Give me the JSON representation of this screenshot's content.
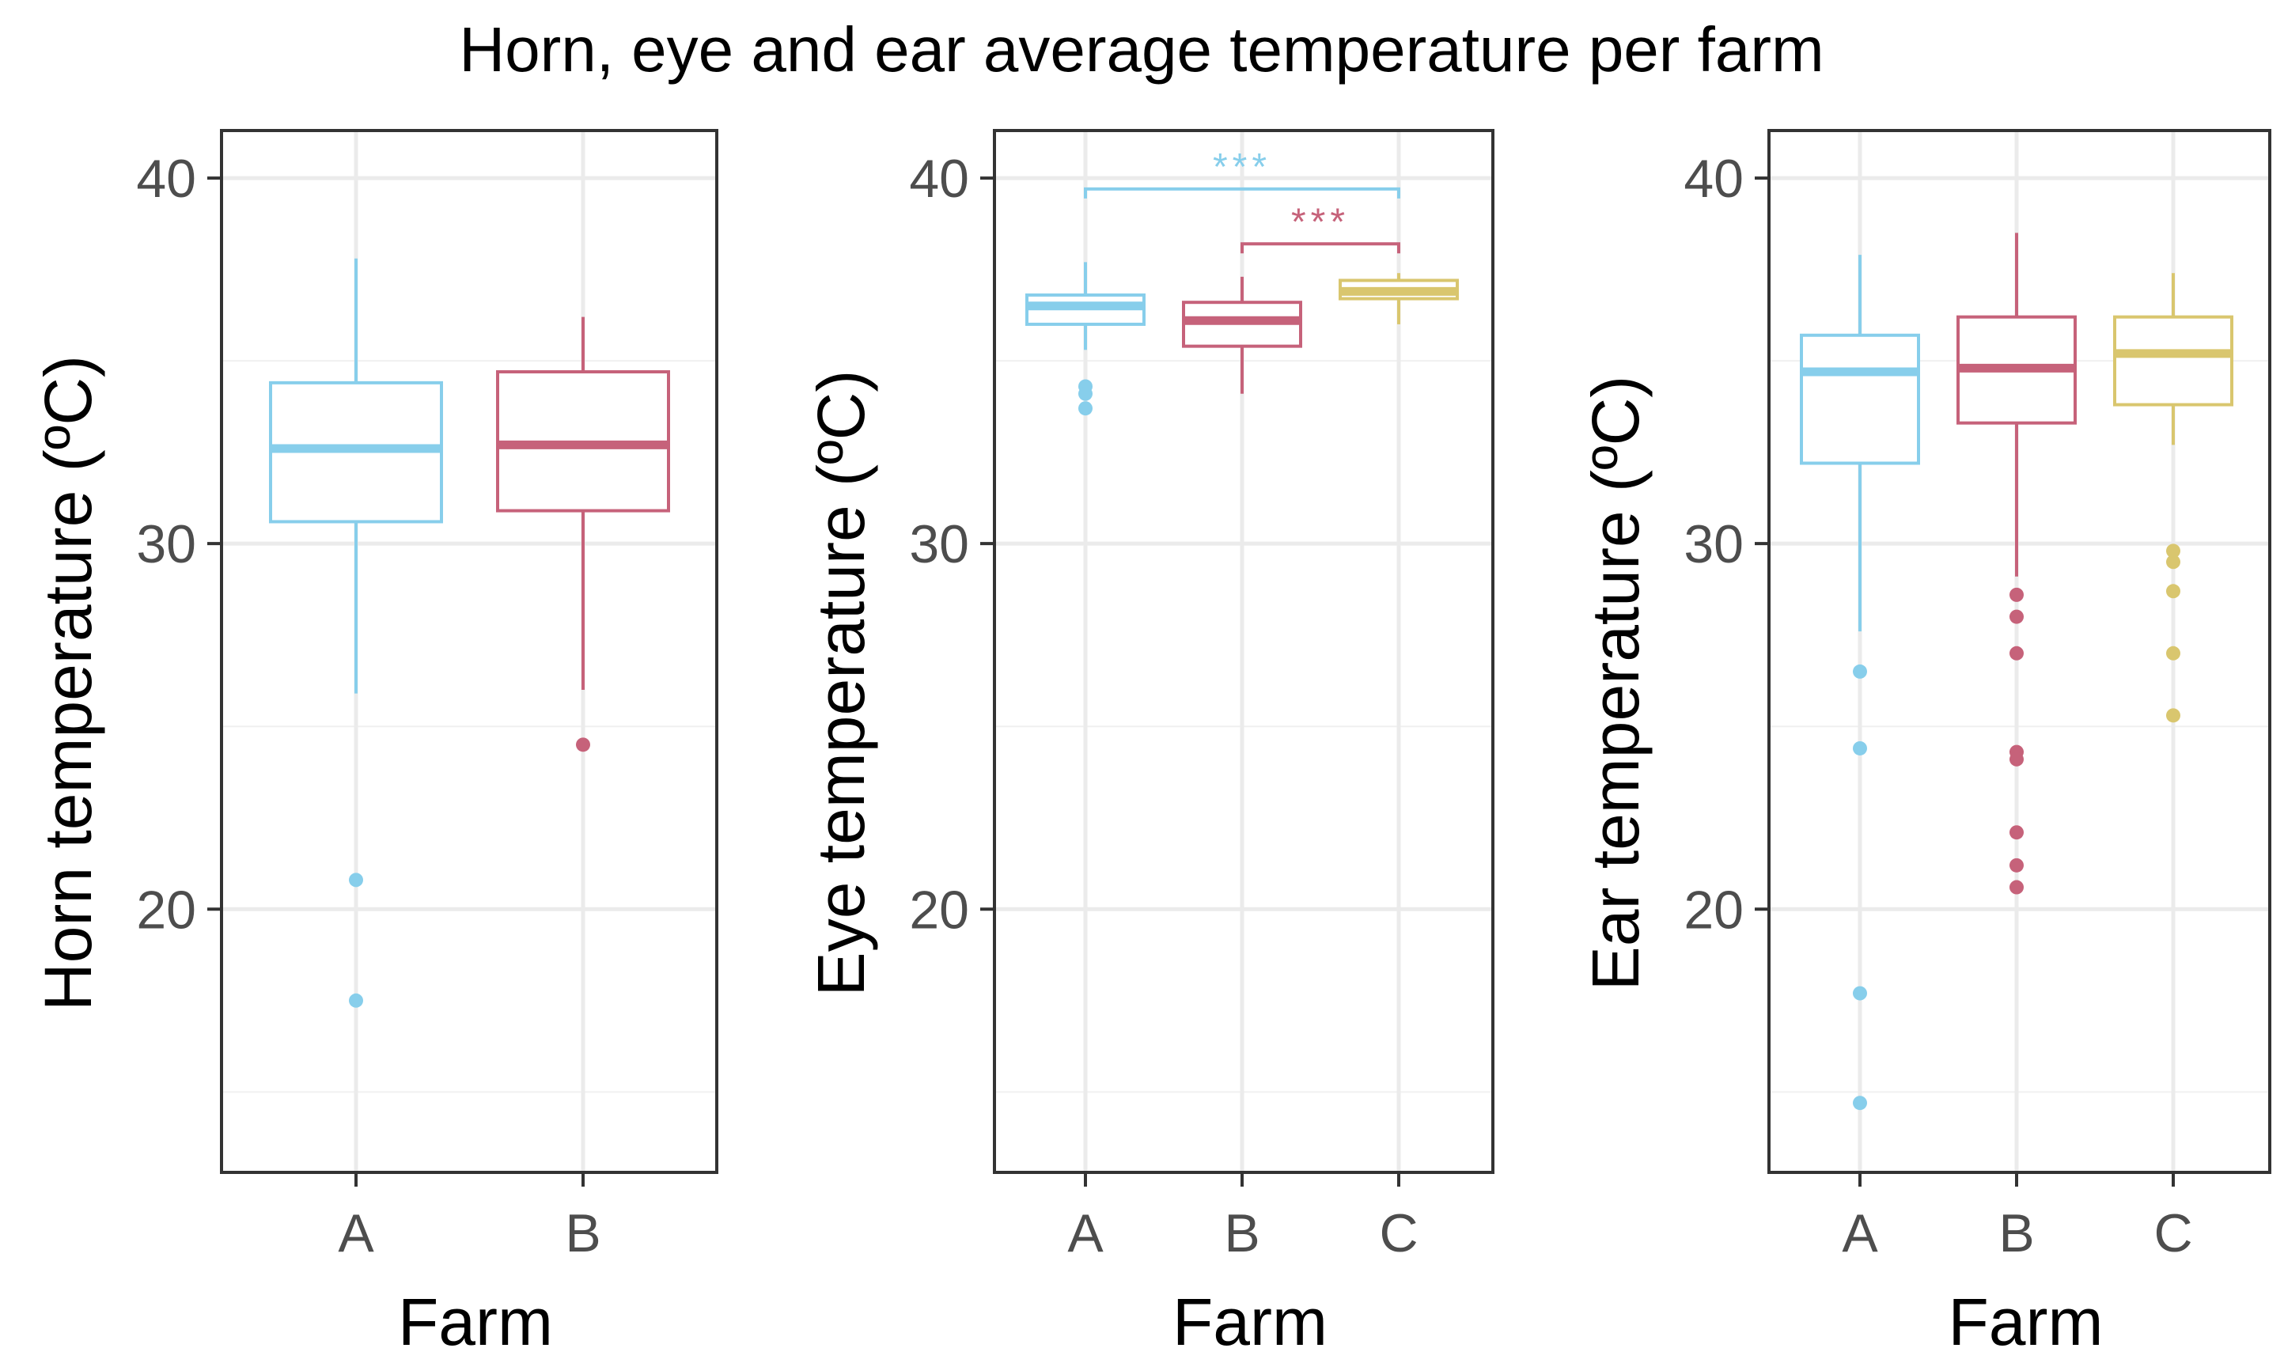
{
  "chart_data": [
    {
      "type": "box",
      "title": "Horn, eye and ear average temperature per farm",
      "xlabel": "Farm",
      "ylabel": "Horn temperature (ºC)",
      "ylim": [
        12.8,
        41.3
      ],
      "yticks": [
        20,
        30,
        40
      ],
      "categories": [
        "A",
        "B"
      ],
      "colors": [
        "#87CEEB",
        "#C6627A"
      ],
      "boxes": [
        {
          "category": "A",
          "whisker_low": 25.9,
          "q1": 30.6,
          "median": 32.6,
          "q3": 34.4,
          "whisker_high": 37.8,
          "outliers": [
            20.8,
            17.5
          ]
        },
        {
          "category": "B",
          "whisker_low": 26.0,
          "q1": 30.9,
          "median": 32.7,
          "q3": 34.7,
          "whisker_high": 36.2,
          "outliers": [
            24.5
          ]
        }
      ],
      "annotations": []
    },
    {
      "type": "box",
      "title": "",
      "xlabel": "Farm",
      "ylabel": "Eye temperature (ºC)",
      "ylim": [
        12.8,
        41.3
      ],
      "yticks": [
        20,
        30,
        40
      ],
      "categories": [
        "A",
        "B",
        "C"
      ],
      "colors": [
        "#87CEEB",
        "#C6627A",
        "#D9C66E"
      ],
      "boxes": [
        {
          "category": "A",
          "whisker_low": 35.3,
          "q1": 36.0,
          "median": 36.5,
          "q3": 36.8,
          "whisker_high": 37.7,
          "outliers": [
            34.3,
            34.1,
            33.7
          ]
        },
        {
          "category": "B",
          "whisker_low": 34.1,
          "q1": 35.4,
          "median": 36.1,
          "q3": 36.6,
          "whisker_high": 37.3,
          "outliers": []
        },
        {
          "category": "C",
          "whisker_low": 36.0,
          "q1": 36.7,
          "median": 36.9,
          "q3": 37.2,
          "whisker_high": 37.4,
          "outliers": []
        }
      ],
      "annotations": [
        {
          "from": "A",
          "to": "C",
          "y": 39.7,
          "label": "***",
          "color": "#87CEEB"
        },
        {
          "from": "B",
          "to": "C",
          "y": 38.2,
          "label": "***",
          "color": "#C6627A"
        }
      ]
    },
    {
      "type": "box",
      "title": "",
      "xlabel": "Farm",
      "ylabel": "Ear temperature (ºC)",
      "ylim": [
        12.8,
        41.3
      ],
      "yticks": [
        20,
        30,
        40
      ],
      "categories": [
        "A",
        "B",
        "C"
      ],
      "colors": [
        "#87CEEB",
        "#C6627A",
        "#D9C66E"
      ],
      "boxes": [
        {
          "category": "A",
          "whisker_low": 27.6,
          "q1": 32.2,
          "median": 34.7,
          "q3": 35.7,
          "whisker_high": 37.9,
          "outliers": [
            26.5,
            24.4,
            17.7,
            14.7
          ]
        },
        {
          "category": "B",
          "whisker_low": 29.1,
          "q1": 33.3,
          "median": 34.8,
          "q3": 36.2,
          "whisker_high": 38.5,
          "outliers": [
            28.6,
            28.0,
            27.0,
            24.3,
            24.1,
            22.1,
            21.2,
            20.6
          ]
        },
        {
          "category": "C",
          "whisker_low": 32.7,
          "q1": 33.8,
          "median": 35.2,
          "q3": 36.2,
          "whisker_high": 37.4,
          "outliers": [
            29.8,
            29.5,
            28.7,
            27.0,
            25.3
          ]
        }
      ],
      "annotations": []
    }
  ]
}
